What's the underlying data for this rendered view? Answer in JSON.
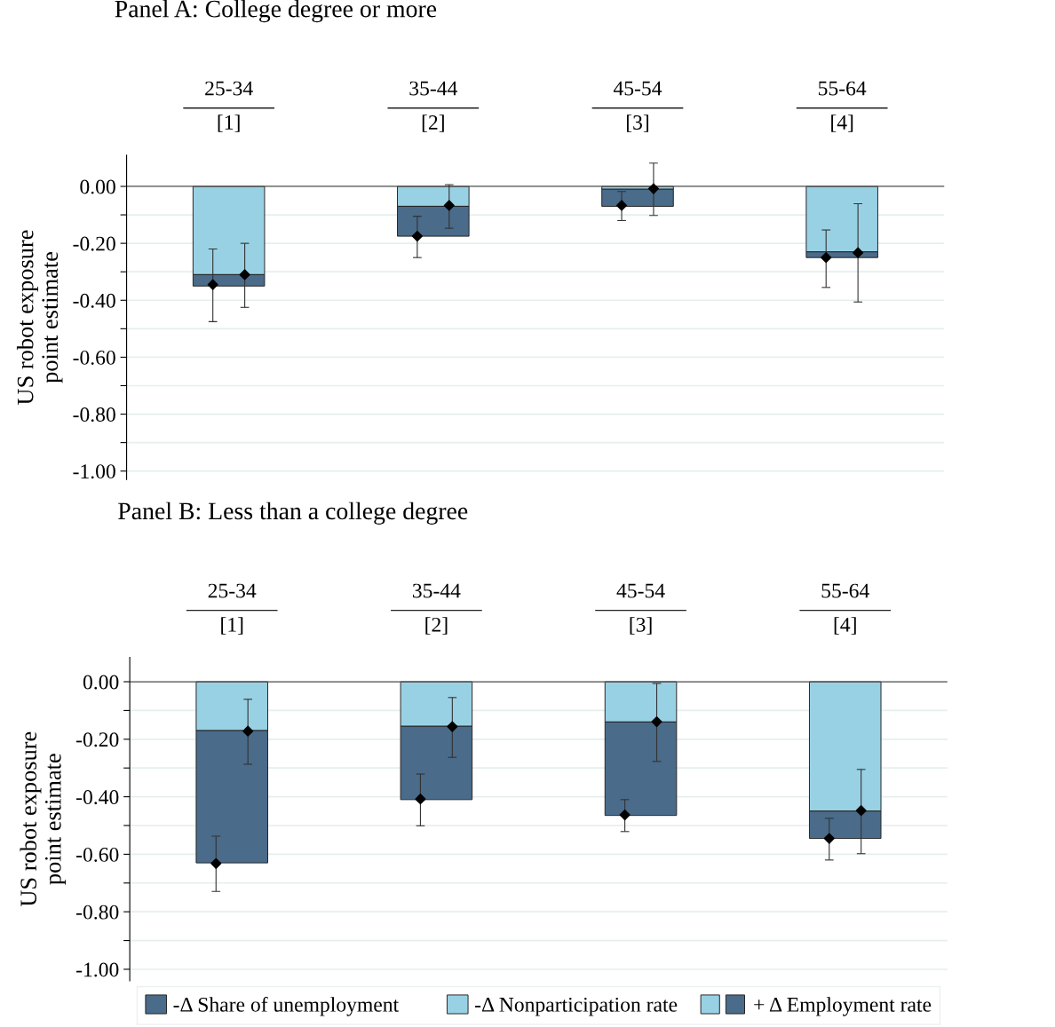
{
  "chart_data": [
    {
      "type": "bar",
      "title": "Panel A: College degree or more",
      "ylabel": "US robot exposure\npoint estimate",
      "categories": [
        "25-34",
        "35-44",
        "45-54",
        "55-64"
      ],
      "stacked": true,
      "ylim": [
        -1.03,
        0.11
      ],
      "yticks": [
        {
          "value": 0,
          "label": "0.00"
        },
        {
          "value": -0.1,
          "label": null
        },
        {
          "value": -0.2,
          "label": "-0.20"
        },
        {
          "value": -0.3,
          "label": null
        },
        {
          "value": -0.4,
          "label": "-0.40"
        },
        {
          "value": -0.5,
          "label": null
        },
        {
          "value": -0.6,
          "label": "-0.60"
        },
        {
          "value": -0.7,
          "label": null
        },
        {
          "value": -0.8,
          "label": "-0.80"
        },
        {
          "value": -0.9,
          "label": null
        },
        {
          "value": -1.0,
          "label": "-1.00"
        }
      ],
      "grid": "y",
      "tick_labels": "y",
      "marker": "diamond",
      "annotations": [
        "[1]",
        "[2]",
        "[3]",
        "[4]"
      ],
      "series": [
        {
          "color": "#99d1e4",
          "values": [
            -0.31,
            -0.07,
            -0.01,
            -0.23
          ]
        },
        {
          "color": "#4a6b8a",
          "values": [
            -0.04,
            -0.105,
            -0.06,
            -0.02
          ]
        },
        {
          "type": "scatter",
          "color": "#000000",
          "x": [
            "25-34",
            "35-44",
            "45-54",
            "55-64"
          ],
          "values": [
            -0.345,
            -0.175,
            -0.067,
            -0.25
          ],
          "errors": [
            [
              -0.475,
              -0.22
            ],
            [
              -0.25,
              -0.105
            ],
            [
              -0.12,
              -0.018
            ],
            [
              -0.355,
              -0.153
            ]
          ]
        },
        {
          "type": "scatter",
          "color": "#000000",
          "x": [
            "25-34",
            "35-44",
            "45-54",
            "55-64"
          ],
          "values": [
            -0.31,
            -0.067,
            -0.008,
            -0.233
          ],
          "errors": [
            [
              -0.425,
              -0.2
            ],
            [
              -0.147,
              0.006
            ],
            [
              -0.102,
              0.082
            ],
            [
              -0.406,
              -0.061
            ]
          ]
        }
      ]
    },
    {
      "type": "bar",
      "title": "Panel B: Less than a college degree",
      "ylabel": "US robot exposure\npoint estimate",
      "categories": [
        "25-34",
        "35-44",
        "45-54",
        "55-64"
      ],
      "stacked": true,
      "ylim": [
        -1.04,
        0.085
      ],
      "yticks": [
        {
          "value": 0,
          "label": "0.00"
        },
        {
          "value": -0.1,
          "label": null
        },
        {
          "value": -0.2,
          "label": "-0.20"
        },
        {
          "value": -0.3,
          "label": null
        },
        {
          "value": -0.4,
          "label": "-0.40"
        },
        {
          "value": -0.5,
          "label": null
        },
        {
          "value": -0.6,
          "label": "-0.60"
        },
        {
          "value": -0.7,
          "label": null
        },
        {
          "value": -0.8,
          "label": "-0.80"
        },
        {
          "value": -0.9,
          "label": null
        },
        {
          "value": -1.0,
          "label": "-1.00"
        }
      ],
      "grid": "y",
      "legend": "bottom",
      "tick_labels": "y",
      "marker": "diamond",
      "annotations": [
        "[1]",
        "[2]",
        "[3]",
        "[4]",
        "+ Δ Employment rate"
      ],
      "series": [
        {
          "name": "-Δ Nonparticipation rate",
          "color": "#99d1e4",
          "values": [
            -0.17,
            -0.155,
            -0.14,
            -0.45
          ]
        },
        {
          "name": "-Δ Share of unemployment",
          "color": "#4a6b8a",
          "values": [
            -0.46,
            -0.255,
            -0.325,
            -0.095
          ]
        },
        {
          "type": "scatter",
          "color": "#000000",
          "x": [
            "25-34",
            "35-44",
            "45-54",
            "55-64"
          ],
          "values": [
            -0.632,
            -0.408,
            -0.463,
            -0.545
          ],
          "errors": [
            [
              -0.729,
              -0.537
            ],
            [
              -0.501,
              -0.321
            ],
            [
              -0.521,
              -0.41
            ],
            [
              -0.62,
              -0.475
            ]
          ]
        },
        {
          "type": "scatter",
          "color": "#000000",
          "x": [
            "25-34",
            "35-44",
            "45-54",
            "55-64"
          ],
          "values": [
            -0.172,
            -0.156,
            -0.139,
            -0.448
          ],
          "errors": [
            [
              -0.287,
              -0.061
            ],
            [
              -0.263,
              -0.055
            ],
            [
              -0.277,
              -0.006
            ],
            [
              -0.598,
              -0.305
            ]
          ]
        }
      ]
    }
  ]
}
